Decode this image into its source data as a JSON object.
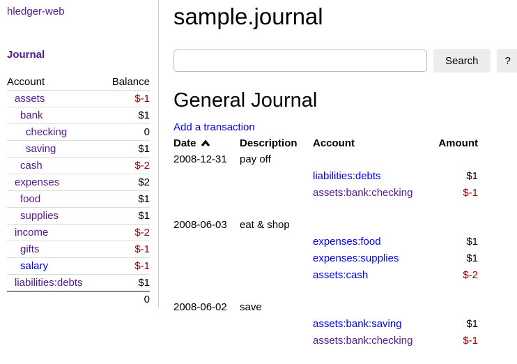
{
  "app": {
    "name_label": "hledger-web"
  },
  "colors": {
    "link_blue": "#0000EE",
    "visited_purple": "#551A8B",
    "negative_red": "#8B0000"
  },
  "sidebar": {
    "heading": "Journal",
    "accounts": {
      "account_header": "Account",
      "balance_header": "Balance",
      "rows": [
        {
          "name": "assets",
          "depth": 1,
          "balance": "$-1",
          "negative": true,
          "visited": true
        },
        {
          "name": "bank",
          "depth": 2,
          "balance": "$1",
          "negative": false,
          "visited": true
        },
        {
          "name": "checking",
          "depth": 3,
          "balance": "0",
          "negative": false,
          "visited": true
        },
        {
          "name": "saving",
          "depth": 3,
          "balance": "$1",
          "negative": false,
          "visited": true
        },
        {
          "name": "cash",
          "depth": 2,
          "balance": "$-2",
          "negative": true,
          "visited": true
        },
        {
          "name": "expenses",
          "depth": 1,
          "balance": "$2",
          "negative": false,
          "visited": true
        },
        {
          "name": "food",
          "depth": 2,
          "balance": "$1",
          "negative": false,
          "visited": true
        },
        {
          "name": "supplies",
          "depth": 2,
          "balance": "$1",
          "negative": false,
          "visited": true
        },
        {
          "name": "income",
          "depth": 1,
          "balance": "$-2",
          "negative": true,
          "visited": true
        },
        {
          "name": "gifts",
          "depth": 2,
          "balance": "$-1",
          "negative": true,
          "visited": true
        },
        {
          "name": "salary",
          "depth": 2,
          "balance": "$-1",
          "negative": true,
          "visited": false
        },
        {
          "name": "liabilities:debts",
          "depth": 1,
          "balance": "$1",
          "negative": false,
          "visited": true
        }
      ],
      "total": "0"
    }
  },
  "main": {
    "title": "sample.journal",
    "search": {
      "value": "",
      "button_label": "Search",
      "help_label": "?"
    },
    "journal": {
      "heading": "General Journal",
      "add_link": "Add a transaction",
      "columns": {
        "date": "Date",
        "description": "Description",
        "account": "Account",
        "amount": "Amount"
      },
      "sort": {
        "column": "date",
        "direction": "ascending"
      },
      "transactions": [
        {
          "date": "2008-12-31",
          "description": "pay off",
          "postings": [
            {
              "account": "liabilities:debts",
              "amount": "$1",
              "negative": false,
              "visited": false
            },
            {
              "account": "assets:bank:checking",
              "amount": "$-1",
              "negative": true,
              "visited": true
            }
          ]
        },
        {
          "date": "2008-06-03",
          "description": "eat & shop",
          "postings": [
            {
              "account": "expenses:food",
              "amount": "$1",
              "negative": false,
              "visited": false
            },
            {
              "account": "expenses:supplies",
              "amount": "$1",
              "negative": false,
              "visited": false
            },
            {
              "account": "assets:cash",
              "amount": "$-2",
              "negative": true,
              "visited": false
            }
          ]
        },
        {
          "date": "2008-06-02",
          "description": "save",
          "postings": [
            {
              "account": "assets:bank:saving",
              "amount": "$1",
              "negative": false,
              "visited": false
            },
            {
              "account": "assets:bank:checking",
              "amount": "$-1",
              "negative": true,
              "visited": true
            }
          ]
        }
      ]
    }
  }
}
